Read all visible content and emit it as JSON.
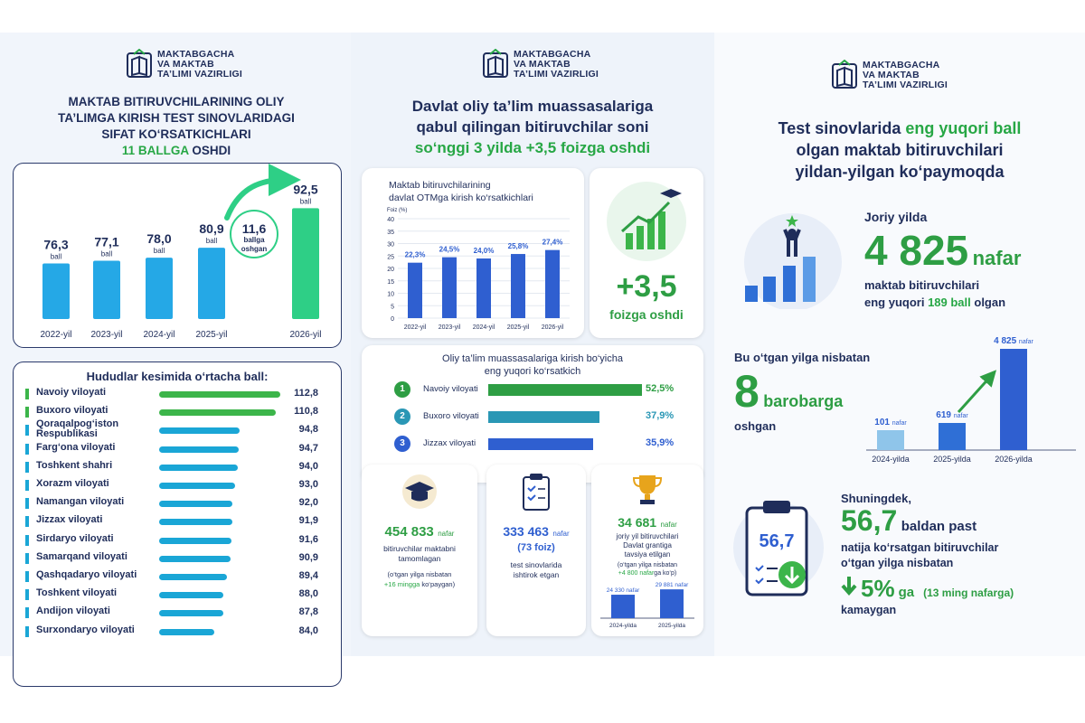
{
  "logo": {
    "line1": "MAKTABGACHA",
    "line2": "VA MAKTAB",
    "line3": "TA’LIMI VAZIRLIGI"
  },
  "panel1": {
    "title_lines": [
      "MAKTAB BITIRUVCHILARINING OLIY",
      "TA’LIMGA KIRISH TEST SINOVLARIDAGI",
      "SIFAT KO‘RSATKICHLARI"
    ],
    "title_green": "11 BALLGA",
    "title_tail": "OSHDI",
    "growth_value": "11,6",
    "growth_l1": "ballga",
    "growth_l2": "oshgan",
    "ball_unit": "ball",
    "regions_title": "Hududlar kesimida o‘rtacha ball:"
  },
  "panel2": {
    "title_lines": [
      "Davlat oliy ta’lim muassasalariga",
      "qabul qilingan bitiruvchilar soni"
    ],
    "title_green": "so‘nggi 3 yilda +3,5 foizga oshdi",
    "chart_title_l1": "Maktab bitiruvchilarining",
    "chart_title_l2": "davlat OTMga kirish ko‘rsatkichlari",
    "big_value": "+3,5",
    "big_caption": "foizga oshdi",
    "rank_title_l1": "Oliy ta’lim muassasalariga kirish bo‘yicha",
    "rank_title_l2": "eng yuqori ko‘rsatkich",
    "stat1_value": "454 833",
    "stat1_unit": "nafar",
    "stat1_l1": "bitiruvchilar maktabni",
    "stat1_l2": "tamomlagan",
    "stat1_n1": "(o‘tgan yilga nisbatan",
    "stat1_n2": "+16 mingga",
    "stat1_n3": "ko‘paygan)",
    "stat2_value": "333 463",
    "stat2_unit": "nafar",
    "stat2_pct": "(73 foiz)",
    "stat2_l1": "test sinovlarida",
    "stat2_l2": "ishtirok etgan",
    "stat3_value": "34 681",
    "stat3_unit": "nafar",
    "stat3_l1": "joriy yil bitiruvchilari",
    "stat3_l2": "Davlat grantiga",
    "stat3_l3": "tavsiya etilgan",
    "stat3_n1": "(o‘tgan yilga nisbatan",
    "stat3_n2": "+4 800 nafar",
    "stat3_n3": "ga ko‘p)"
  },
  "panel3": {
    "title_l1a": "Test sinovlarida ",
    "title_l1b": "eng yuqori ball",
    "title_l2": "olgan maktab bitiruvchilari",
    "title_l3": "yildan-yilgan ko‘paymoqda",
    "current_label": "Joriy yilda",
    "current_value": "4 825",
    "current_unit": "nafar",
    "current_l1": "maktab bitiruvchilari",
    "current_l2a": "eng yuqori ",
    "current_l2b": "189 ball",
    "current_l2c": " olgan",
    "cmp_l1": "Bu o‘tgan yilga nisbatan",
    "cmp_value": "8",
    "cmp_word": "barobarga",
    "cmp_l3": "oshgan",
    "also": "Shuningdek,",
    "low_value": "56,7",
    "low_word": "baldan past",
    "low_l1": "natija ko‘rsatgan bitiruvchilar",
    "low_l2": "o‘tgan yilga nisbatan",
    "pct_value": "5%",
    "pct_word": "ga",
    "pct_note": "(13 ming nafarga)",
    "pct_l3": "kamaygan",
    "clip_value": "56,7"
  },
  "chart_data": [
    {
      "type": "bar",
      "title": "MAKTAB BITIRUVCHILARINING OLIY TA’LIMGA KIRISH TEST SINOVLARIDAGI SIFAT KO‘RSATKICHLARI 11 BALLGA OSHDI",
      "categories": [
        "2022-yil",
        "2023-yil",
        "2024-yil",
        "2025-yil",
        "2026-yil"
      ],
      "values": [
        76.3,
        77.1,
        78.0,
        80.9,
        92.5
      ],
      "labels": [
        "76,3",
        "77,1",
        "78,0",
        "80,9",
        "92,5"
      ],
      "colors": [
        "#25a8e6",
        "#25a8e6",
        "#25a8e6",
        "#25a8e6",
        "#2ecf86"
      ]
    },
    {
      "type": "bar",
      "title": "Hududlar kesimida o‘rtacha ball:",
      "orientation": "horizontal",
      "categories": [
        "Navoiy viloyati",
        "Buxoro viloyati",
        "Qoraqalpog‘iston Respublikasi",
        "Farg‘ona viloyati",
        "Toshkent shahri",
        "Xorazm viloyati",
        "Namangan viloyati",
        "Jizzax viloyati",
        "Sirdaryo viloyati",
        "Samarqand viloyati",
        "Qashqadaryo viloyati",
        "Toshkent viloyati",
        "Andijon viloyati",
        "Surxondaryo viloyati"
      ],
      "values": [
        112.8,
        110.8,
        94.8,
        94.7,
        94.0,
        93.0,
        92.0,
        91.9,
        91.6,
        90.9,
        89.4,
        88.0,
        87.8,
        84.0
      ],
      "labels": [
        "112,8",
        "110,8",
        "94,8",
        "94,7",
        "94,0",
        "93,0",
        "92,0",
        "91,9",
        "91,6",
        "90,9",
        "89,4",
        "88,0",
        "87,8",
        "84,0"
      ],
      "highlight": [
        "#3cb54a",
        "#3cb54a",
        "#1aa6d6",
        "#1aa6d6",
        "#1aa6d6",
        "#1aa6d6",
        "#1aa6d6",
        "#1aa6d6",
        "#1aa6d6",
        "#1aa6d6",
        "#1aa6d6",
        "#1aa6d6",
        "#1aa6d6",
        "#1aa6d6"
      ]
    },
    {
      "type": "bar",
      "title": "Maktab bitiruvchilarining davlat OTMga kirish ko‘rsatkichlari",
      "ylabel": "Foiz (%)",
      "ylim": [
        0,
        40
      ],
      "yticks": [
        0,
        5,
        10,
        15,
        20,
        25,
        30,
        35,
        40
      ],
      "categories": [
        "2022-yil",
        "2023-yil",
        "2024-yil",
        "2025-yil",
        "2026-yil"
      ],
      "values": [
        22.3,
        24.5,
        24.0,
        25.8,
        27.4
      ],
      "labels": [
        "22,3%",
        "24,5%",
        "24,0%",
        "25,8%",
        "27,4%"
      ],
      "color": "#2f5fd0"
    },
    {
      "type": "bar",
      "title": "Oliy ta’lim muassasalariga kirish bo‘yicha eng yuqori ko‘rsatkich",
      "orientation": "horizontal",
      "categories": [
        "Navoiy viloyati",
        "Buxoro viloyati",
        "Jizzax viloyati"
      ],
      "values": [
        52.5,
        37.9,
        35.9
      ],
      "labels": [
        "52,5%",
        "37,9%",
        "35,9%"
      ],
      "ranks": [
        "1",
        "2",
        "3"
      ],
      "colors": [
        "#2e9e44",
        "#2a97b5",
        "#2f5fd0"
      ]
    },
    {
      "type": "bar",
      "title": "Davlat grantiga tavsiya etilgan",
      "categories": [
        "2024-yilda",
        "2025-yilda"
      ],
      "values": [
        24330,
        29881
      ],
      "labels": [
        "24 330",
        "29 881"
      ],
      "unit": "nafar",
      "color": "#2f5fd0"
    },
    {
      "type": "bar",
      "title": "Bu o‘tgan yilga nisbatan 8 barobarga oshgan",
      "categories": [
        "2024-yilda",
        "2025-yilda",
        "2026-yilda"
      ],
      "values": [
        101,
        619,
        4825
      ],
      "labels": [
        "101",
        "619",
        "4 825"
      ],
      "unit": "nafar",
      "colors": [
        "#8fc5ea",
        "#2f6fd6",
        "#2f5fd0"
      ]
    }
  ]
}
